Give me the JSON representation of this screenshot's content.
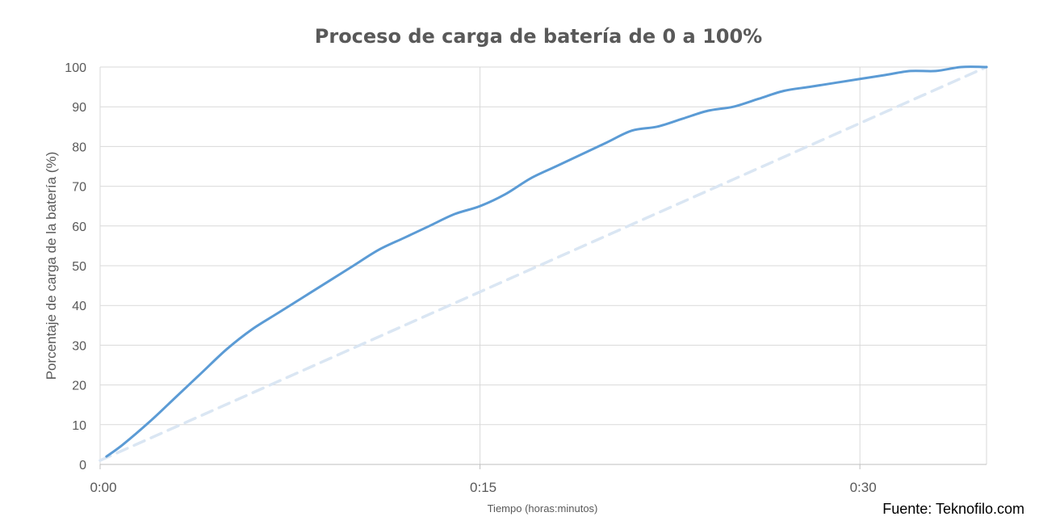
{
  "chart_data": {
    "type": "line",
    "title": "Proceso de carga de batería de 0 a 100%",
    "xlabel": "Tiempo (horas:minutos)",
    "ylabel": "Porcentaje de carga de la batería (%)",
    "source": "Fuente: Teknofilo.com",
    "ylim": [
      0,
      100
    ],
    "yticks": [
      "0",
      "10",
      "20",
      "30",
      "40",
      "50",
      "60",
      "70",
      "80",
      "90",
      "100"
    ],
    "xlim_minutes": [
      0,
      35
    ],
    "xticks": [
      {
        "label": "0:00",
        "minutes": 0
      },
      {
        "label": "0:15",
        "minutes": 15
      },
      {
        "label": "0:30",
        "minutes": 30
      }
    ],
    "grid": true,
    "series": [
      {
        "style": "solid",
        "color": "#5b9bd5",
        "x_minutes": [
          0.25,
          0.9,
          2,
          3,
          4,
          5,
          6,
          7,
          8,
          9,
          10,
          11,
          12,
          13,
          14,
          15,
          16,
          17,
          18,
          19,
          20,
          21,
          22,
          23,
          24,
          25,
          26,
          27,
          28,
          29,
          30,
          31,
          32,
          33,
          34,
          35
        ],
        "values": [
          2,
          5,
          11,
          17,
          23,
          29,
          34,
          38,
          42,
          46,
          50,
          54,
          57,
          60,
          63,
          65,
          68,
          72,
          75,
          78,
          81,
          84,
          85,
          87,
          89,
          90,
          92,
          94,
          95,
          96,
          97,
          98,
          99,
          99,
          100,
          100
        ]
      },
      {
        "style": "dashed",
        "color": "#dae6f3",
        "x_minutes": [
          0,
          35
        ],
        "values": [
          1,
          100
        ]
      }
    ]
  }
}
